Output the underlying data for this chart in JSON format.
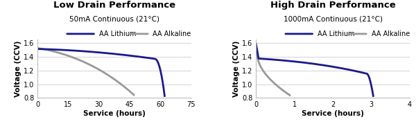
{
  "left_title": "Low Drain Performance",
  "left_subtitle": "50mA Continuous (21°C)",
  "right_title": "High Drain Performance",
  "right_subtitle": "1000mA Continuous (21°C)",
  "xlabel": "Service (hours)",
  "ylabel": "Voltage (CCV)",
  "ylim": [
    0.8,
    1.65
  ],
  "yticks": [
    0.8,
    1.0,
    1.2,
    1.4,
    1.6
  ],
  "left_xlim": [
    0,
    75
  ],
  "left_xticks": [
    0,
    15,
    30,
    45,
    60,
    75
  ],
  "right_xlim": [
    0,
    4
  ],
  "right_xticks": [
    0,
    1,
    2,
    3,
    4
  ],
  "lithium_color": "#1a1a8c",
  "alkaline_color": "#999999",
  "lithium_label": "AA Lithium",
  "alkaline_label": "AA Alkaline",
  "line_width": 2.0,
  "background_color": "#ffffff",
  "grid_color": "#cccccc",
  "title_fontsize": 9.5,
  "subtitle_fontsize": 7.5,
  "axis_label_fontsize": 7.5,
  "tick_fontsize": 7,
  "legend_fontsize": 7
}
